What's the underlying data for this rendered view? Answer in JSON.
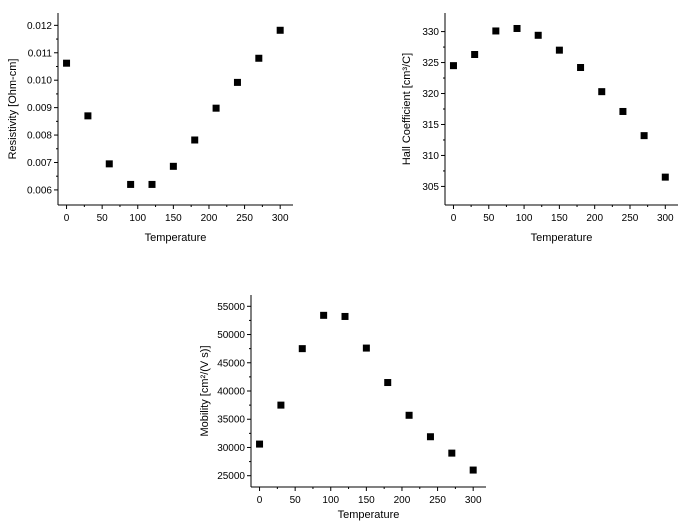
{
  "chart_data": [
    {
      "type": "scatter",
      "xlabel": "Temperature",
      "ylabel": "Resistivity [Ohm-cm]",
      "xlim": [
        -12,
        318
      ],
      "ylim": [
        0.00545,
        0.01245
      ],
      "xticks": [
        0,
        50,
        100,
        150,
        200,
        250,
        300
      ],
      "yticks": [
        0.006,
        0.007,
        0.008,
        0.009,
        0.01,
        0.011,
        0.012
      ],
      "ytick_labels": [
        "0.006",
        "0.007",
        "0.008",
        "0.009",
        "0.010",
        "0.011",
        "0.012"
      ],
      "marker": "square",
      "color": "#000000",
      "x": [
        0,
        30,
        60,
        90,
        120,
        150,
        180,
        210,
        240,
        270,
        300
      ],
      "y": [
        0.01062,
        0.0087,
        0.00695,
        0.0062,
        0.0062,
        0.00686,
        0.00782,
        0.00898,
        0.00992,
        0.0108,
        0.01182
      ]
    },
    {
      "type": "scatter",
      "xlabel": "Temperature",
      "ylabel": "Hall Coefficient [cm³/C]",
      "xlim": [
        -12,
        318
      ],
      "ylim": [
        302,
        333
      ],
      "xticks": [
        0,
        50,
        100,
        150,
        200,
        250,
        300
      ],
      "yticks": [
        305,
        310,
        315,
        320,
        325,
        330
      ],
      "ytick_labels": [
        "305",
        "310",
        "315",
        "320",
        "325",
        "330"
      ],
      "marker": "square",
      "color": "#000000",
      "x": [
        0,
        30,
        60,
        90,
        120,
        150,
        180,
        210,
        240,
        270,
        300
      ],
      "y": [
        324.5,
        326.3,
        330.1,
        330.5,
        329.4,
        327.0,
        324.2,
        320.3,
        317.1,
        313.2,
        306.5
      ]
    },
    {
      "type": "scatter",
      "xlabel": "Temperature",
      "ylabel": "Mobility [cm²/(V s)]",
      "xlim": [
        -12,
        318
      ],
      "ylim": [
        23000,
        57000
      ],
      "xticks": [
        0,
        50,
        100,
        150,
        200,
        250,
        300
      ],
      "yticks": [
        25000,
        30000,
        35000,
        40000,
        45000,
        50000,
        55000
      ],
      "ytick_labels": [
        "25000",
        "30000",
        "35000",
        "40000",
        "45000",
        "50000",
        "55000"
      ],
      "marker": "square",
      "color": "#000000",
      "x": [
        0,
        30,
        60,
        90,
        120,
        150,
        180,
        210,
        240,
        270,
        300
      ],
      "y": [
        30600,
        37500,
        47500,
        53400,
        53200,
        47600,
        41500,
        35700,
        31900,
        29000,
        26000
      ]
    }
  ]
}
